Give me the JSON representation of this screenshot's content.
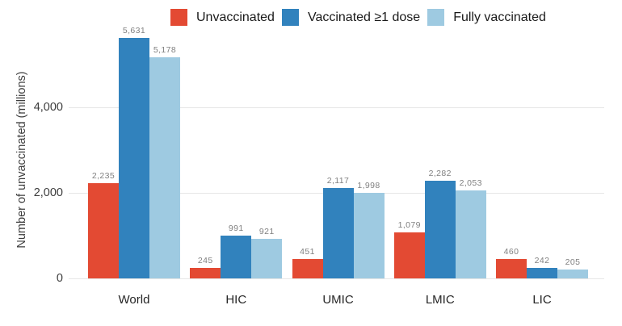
{
  "chart_data": {
    "type": "bar",
    "title": "",
    "xlabel": "",
    "ylabel": "Number of unvaccinated (millions)",
    "categories": [
      "World",
      "HIC",
      "UMIC",
      "LMIC",
      "LIC"
    ],
    "series": [
      {
        "name": "Unvaccinated",
        "color": "#e34a33",
        "values": [
          2235,
          245,
          451,
          1079,
          460
        ]
      },
      {
        "name": "Vaccinated ≥1 dose",
        "color": "#3182bd",
        "values": [
          5631,
          991,
          2117,
          2282,
          242
        ]
      },
      {
        "name": "Fully vaccinated",
        "color": "#9ecae1",
        "values": [
          5178,
          921,
          1998,
          2053,
          205
        ]
      }
    ],
    "value_labels": [
      [
        "2,235",
        "245",
        "451",
        "1,079",
        "460"
      ],
      [
        "5,631",
        "991",
        "2,117",
        "2,282",
        "242"
      ],
      [
        "5,178",
        "921",
        "1,998",
        "2,053",
        "205"
      ]
    ],
    "yticks": [
      {
        "value": 0,
        "label": "0"
      },
      {
        "value": 2000,
        "label": "2,000"
      },
      {
        "value": 4000,
        "label": "4,000"
      }
    ],
    "ylim": [
      0,
      5900
    ],
    "grid": true,
    "legend_position": "top",
    "colors": {
      "grid": "#e6e6e6",
      "value_label": "#808080",
      "tick_label": "#3d3d3d",
      "axis_label": "#3d3d3d",
      "background": "#ffffff"
    }
  }
}
